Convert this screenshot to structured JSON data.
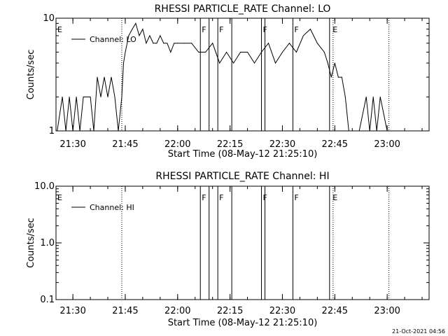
{
  "timestamp": "21-Oct-2021 04:56",
  "chart_data": [
    {
      "type": "line",
      "title": "RHESSI PARTICLE_RATE Channel: LO",
      "xlabel": "Start Time (08-May-12 21:25:10)",
      "ylabel": "Counts/sec",
      "yscale": "log",
      "ylim": [
        1,
        10
      ],
      "xlim": [
        "21:25:10",
        "23:12:00"
      ],
      "ytick_labels": [
        "1",
        "10"
      ],
      "ytick_values": [
        1,
        10
      ],
      "xtick_labels": [
        "21:30",
        "21:45",
        "22:00",
        "22:15",
        "22:30",
        "22:45",
        "23:00"
      ],
      "xtick_values": [
        "21:30",
        "21:45",
        "22:00",
        "22:15",
        "22:30",
        "22:45",
        "23:00"
      ],
      "legend": "Channel: LO",
      "legend_position": "top-left",
      "flag_labels": [
        {
          "text": "E",
          "time": "21:25:10"
        },
        {
          "text": "F",
          "time": "22:06:30"
        },
        {
          "text": "F",
          "time": "22:11:30"
        },
        {
          "text": "F",
          "time": "22:24:00"
        },
        {
          "text": "F",
          "time": "22:33:00"
        },
        {
          "text": "E",
          "time": "22:44:00"
        }
      ],
      "solid_lines": [
        "22:06:30",
        "22:09:00",
        "22:11:30",
        "22:15:30",
        "22:24:00",
        "22:25:00",
        "22:33:00",
        "22:43:30"
      ],
      "dotted_lines": [
        "21:44:00",
        "22:44:30",
        "23:00:30"
      ],
      "series": [
        {
          "name": "Channel: LO",
          "x": [
            "21:25:30",
            "21:27:00",
            "21:28:00",
            "21:29:00",
            "21:30:00",
            "21:31:00",
            "21:32:00",
            "21:33:00",
            "21:34:00",
            "21:35:00",
            "21:36:00",
            "21:37:00",
            "21:38:00",
            "21:39:00",
            "21:40:00",
            "21:41:00",
            "21:42:00",
            "21:43:00",
            "21:44:00",
            "21:44:30",
            "21:45:00",
            "21:46:00",
            "21:47:00",
            "21:48:00",
            "21:49:00",
            "21:50:00",
            "21:51:00",
            "21:52:00",
            "21:53:00",
            "21:54:00",
            "21:55:00",
            "21:56:00",
            "21:57:00",
            "21:58:00",
            "21:59:00",
            "22:00:00",
            "22:02:00",
            "22:04:00",
            "22:06:00",
            "22:08:00",
            "22:10:00",
            "22:12:00",
            "22:14:00",
            "22:16:00",
            "22:18:00",
            "22:20:00",
            "22:22:00",
            "22:24:00",
            "22:26:00",
            "22:28:00",
            "22:30:00",
            "22:32:00",
            "22:34:00",
            "22:36:00",
            "22:38:00",
            "22:40:00",
            "22:42:00",
            "22:43:00",
            "22:44:00",
            "22:45:00",
            "22:46:00",
            "22:47:00",
            "22:48:00",
            "22:49:00",
            "22:50:00",
            "22:52:00",
            "22:54:00",
            "22:55:00",
            "22:56:00",
            "22:57:00",
            "22:58:00",
            "23:00:00"
          ],
          "values": [
            1,
            2,
            1,
            2,
            1,
            2,
            1,
            2,
            2,
            2,
            1,
            3,
            2,
            3,
            2,
            3,
            2,
            1,
            2,
            4,
            5,
            7,
            8,
            9,
            7,
            8,
            6,
            7,
            6,
            6,
            7,
            6,
            6,
            5,
            6,
            6,
            6,
            6,
            5,
            5,
            6,
            4,
            5,
            4,
            5,
            5,
            4,
            5,
            6,
            4,
            5,
            6,
            5,
            7,
            8,
            6,
            5,
            4,
            3,
            4,
            3,
            3,
            2,
            1,
            1,
            1,
            2,
            1,
            2,
            1,
            2,
            1
          ]
        }
      ]
    },
    {
      "type": "line",
      "title": "RHESSI PARTICLE_RATE Channel: HI",
      "xlabel": "Start Time (08-May-12 21:25:10)",
      "ylabel": "Counts/sec",
      "yscale": "log",
      "ylim": [
        0.1,
        10
      ],
      "xlim": [
        "21:25:10",
        "23:12:00"
      ],
      "ytick_labels": [
        "0.1",
        "1.0",
        "10.0"
      ],
      "ytick_values": [
        0.1,
        1.0,
        10.0
      ],
      "xtick_labels": [
        "21:30",
        "21:45",
        "22:00",
        "22:15",
        "22:30",
        "22:45",
        "23:00"
      ],
      "xtick_values": [
        "21:30",
        "21:45",
        "22:00",
        "22:15",
        "22:30",
        "22:45",
        "23:00"
      ],
      "legend": "Channel: HI",
      "legend_position": "top-left",
      "flag_labels": [
        {
          "text": "E",
          "time": "21:25:10"
        },
        {
          "text": "F",
          "time": "22:06:30"
        },
        {
          "text": "F",
          "time": "22:11:30"
        },
        {
          "text": "F",
          "time": "22:24:00"
        },
        {
          "text": "F",
          "time": "22:33:00"
        },
        {
          "text": "E",
          "time": "22:44:00"
        }
      ],
      "solid_lines": [
        "22:06:30",
        "22:09:00",
        "22:11:30",
        "22:15:30",
        "22:24:00",
        "22:25:00",
        "22:33:00",
        "22:43:30"
      ],
      "dotted_lines": [
        "21:44:00",
        "22:44:30",
        "23:00:30"
      ],
      "series": []
    }
  ]
}
